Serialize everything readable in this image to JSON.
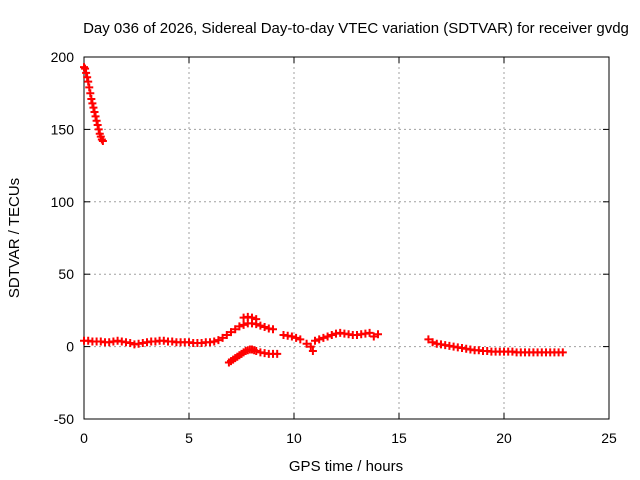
{
  "chart_data": {
    "type": "scatter",
    "title": "Day 036 of 2026, Sidereal Day-to-day VTEC variation (SDTVAR) for receiver gvdg",
    "xlabel": "GPS time / hours",
    "ylabel": "SDTVAR / TECUs",
    "xlim": [
      0,
      25
    ],
    "ylim": [
      -50,
      200
    ],
    "xticks": [
      0,
      5,
      10,
      15,
      20,
      25
    ],
    "yticks": [
      -50,
      0,
      50,
      100,
      150,
      200
    ],
    "xtick_labels": [
      "0",
      "5",
      "10",
      "15",
      "20",
      "25"
    ],
    "ytick_labels": [
      "-50",
      "0",
      "50",
      "100",
      "150",
      "200"
    ],
    "grid": true,
    "marker": "plus",
    "color": "#ff0000",
    "series": [
      {
        "name": "SDTVAR",
        "points": [
          [
            0.0,
            193
          ],
          [
            0.05,
            192
          ],
          [
            0.1,
            189
          ],
          [
            0.15,
            186
          ],
          [
            0.2,
            183
          ],
          [
            0.25,
            179
          ],
          [
            0.3,
            175
          ],
          [
            0.35,
            171
          ],
          [
            0.4,
            168
          ],
          [
            0.45,
            165
          ],
          [
            0.5,
            162
          ],
          [
            0.55,
            159
          ],
          [
            0.6,
            156
          ],
          [
            0.65,
            153
          ],
          [
            0.7,
            150
          ],
          [
            0.75,
            147
          ],
          [
            0.8,
            145
          ],
          [
            0.85,
            143
          ],
          [
            0.9,
            142
          ],
          [
            0.0,
            4
          ],
          [
            0.2,
            4
          ],
          [
            0.4,
            3.5
          ],
          [
            0.6,
            3.5
          ],
          [
            0.8,
            3.5
          ],
          [
            1.0,
            3
          ],
          [
            1.2,
            3
          ],
          [
            1.4,
            3.5
          ],
          [
            1.6,
            4
          ],
          [
            1.8,
            3.5
          ],
          [
            2.0,
            3
          ],
          [
            2.2,
            2.5
          ],
          [
            2.4,
            1.5
          ],
          [
            2.6,
            2
          ],
          [
            2.8,
            2.5
          ],
          [
            3.0,
            3
          ],
          [
            3.2,
            3.5
          ],
          [
            3.4,
            3.5
          ],
          [
            3.6,
            4
          ],
          [
            3.8,
            4
          ],
          [
            4.0,
            3.5
          ],
          [
            4.2,
            3.5
          ],
          [
            4.4,
            3
          ],
          [
            4.6,
            3
          ],
          [
            4.8,
            3
          ],
          [
            5.0,
            3
          ],
          [
            5.2,
            2.5
          ],
          [
            5.4,
            2.5
          ],
          [
            5.6,
            2.5
          ],
          [
            5.8,
            3
          ],
          [
            6.0,
            3
          ],
          [
            6.2,
            3.5
          ],
          [
            6.4,
            4.5
          ],
          [
            6.6,
            6
          ],
          [
            6.8,
            8
          ],
          [
            7.0,
            10
          ],
          [
            7.2,
            12
          ],
          [
            7.4,
            14
          ],
          [
            7.6,
            15
          ],
          [
            7.8,
            16
          ],
          [
            8.0,
            16
          ],
          [
            8.2,
            15.5
          ],
          [
            8.4,
            14.5
          ],
          [
            8.6,
            13.5
          ],
          [
            8.8,
            12.5
          ],
          [
            9.0,
            12
          ],
          [
            7.6,
            20
          ],
          [
            7.8,
            20.5
          ],
          [
            8.0,
            20
          ],
          [
            8.2,
            19
          ],
          [
            6.9,
            -11
          ],
          [
            7.0,
            -10
          ],
          [
            7.1,
            -9
          ],
          [
            7.2,
            -8
          ],
          [
            7.3,
            -7
          ],
          [
            7.4,
            -6
          ],
          [
            7.5,
            -5
          ],
          [
            7.6,
            -4
          ],
          [
            7.7,
            -3
          ],
          [
            7.8,
            -2.5
          ],
          [
            7.9,
            -2
          ],
          [
            8.0,
            -2
          ],
          [
            8.1,
            -2.5
          ],
          [
            8.2,
            -3
          ],
          [
            8.4,
            -4
          ],
          [
            8.6,
            -4.5
          ],
          [
            8.8,
            -5
          ],
          [
            9.0,
            -5
          ],
          [
            9.2,
            -5
          ],
          [
            9.5,
            8
          ],
          [
            9.7,
            7.5
          ],
          [
            9.9,
            7
          ],
          [
            10.1,
            6
          ],
          [
            10.3,
            5
          ],
          [
            10.6,
            2
          ],
          [
            10.8,
            0
          ],
          [
            10.9,
            -3
          ],
          [
            11.0,
            4
          ],
          [
            11.2,
            5
          ],
          [
            11.4,
            6
          ],
          [
            11.6,
            7
          ],
          [
            11.8,
            8
          ],
          [
            12.0,
            9
          ],
          [
            12.2,
            9.5
          ],
          [
            12.4,
            9
          ],
          [
            12.6,
            8.5
          ],
          [
            12.8,
            8
          ],
          [
            13.0,
            8
          ],
          [
            13.2,
            8.5
          ],
          [
            13.4,
            9
          ],
          [
            13.6,
            9.5
          ],
          [
            13.8,
            7
          ],
          [
            14.0,
            8.5
          ],
          [
            16.4,
            5
          ],
          [
            16.6,
            3
          ],
          [
            16.8,
            2
          ],
          [
            17.0,
            1.5
          ],
          [
            17.2,
            1
          ],
          [
            17.4,
            0.5
          ],
          [
            17.6,
            0
          ],
          [
            17.8,
            -0.5
          ],
          [
            18.0,
            -1
          ],
          [
            18.2,
            -1.5
          ],
          [
            18.4,
            -2
          ],
          [
            18.6,
            -2.5
          ],
          [
            18.8,
            -2.5
          ],
          [
            19.0,
            -3
          ],
          [
            19.2,
            -3
          ],
          [
            19.4,
            -3.5
          ],
          [
            19.6,
            -3.5
          ],
          [
            19.8,
            -3.5
          ],
          [
            20.0,
            -3.5
          ],
          [
            20.2,
            -3.5
          ],
          [
            20.4,
            -3.5
          ],
          [
            20.6,
            -4
          ],
          [
            20.8,
            -4
          ],
          [
            21.0,
            -4
          ],
          [
            21.2,
            -4
          ],
          [
            21.4,
            -4
          ],
          [
            21.6,
            -4
          ],
          [
            21.8,
            -4
          ],
          [
            22.0,
            -4
          ],
          [
            22.2,
            -4
          ],
          [
            22.4,
            -4
          ],
          [
            22.6,
            -4
          ],
          [
            22.8,
            -4
          ]
        ]
      }
    ]
  }
}
